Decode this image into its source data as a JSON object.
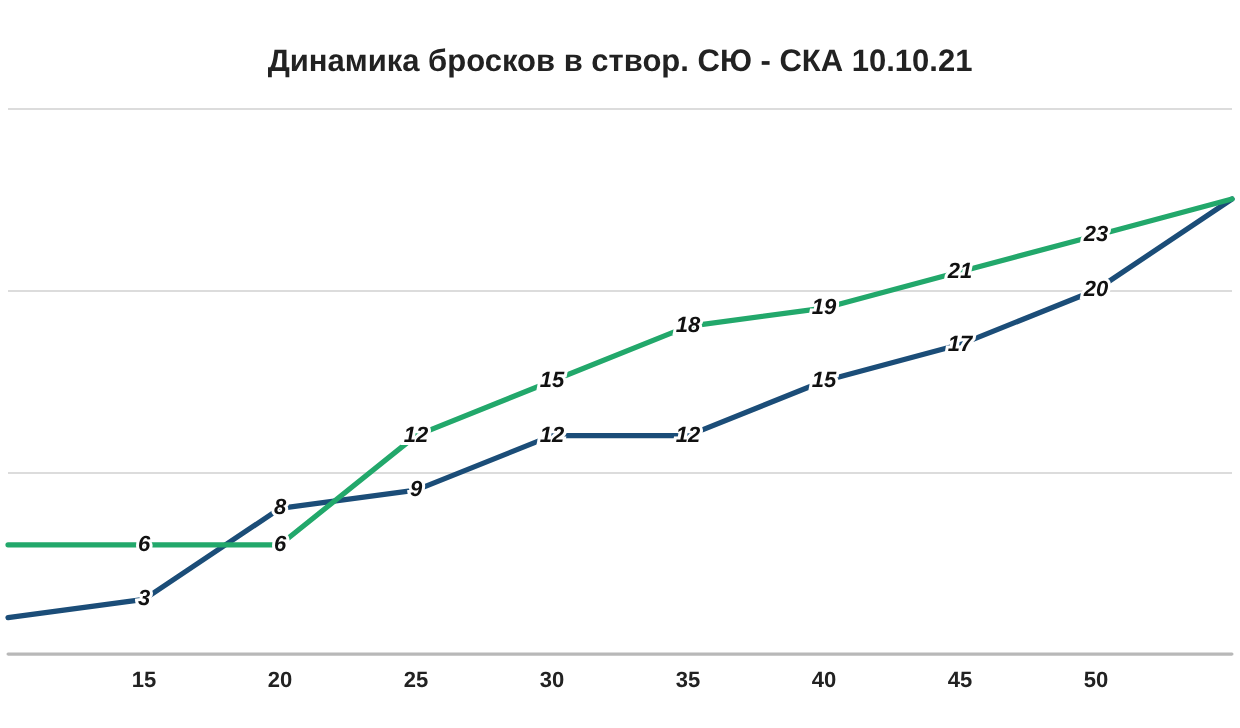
{
  "chart_data": {
    "type": "line",
    "title": "Динамика бросков в створ. СЮ - СКА 10.10.21",
    "categories": [
      null,
      "15",
      "20",
      "25",
      "30",
      "35",
      "40",
      "45",
      "50",
      null
    ],
    "series": [
      {
        "color": "#1b4d78",
        "values": [
          2,
          3,
          8,
          9,
          12,
          12,
          15,
          17,
          20,
          25
        ],
        "value_labels": [
          null,
          "3",
          "8",
          "9",
          "12",
          "12",
          "15",
          "17",
          "20",
          null
        ]
      },
      {
        "color": "#22a86b",
        "values": [
          6,
          6,
          6,
          12,
          15,
          18,
          19,
          21,
          23,
          25
        ],
        "value_labels": [
          null,
          "6",
          "6",
          "12",
          "15",
          "18",
          "19",
          "21",
          "23",
          null
        ]
      }
    ],
    "ylim": [
      0,
      30
    ],
    "yticks": [
      {
        "value": 0,
        "label": null
      },
      {
        "value": 10,
        "label": null
      },
      {
        "value": 20,
        "label": null
      },
      {
        "value": 30,
        "label": null
      }
    ],
    "grid": "y",
    "tick_labels": "x",
    "marker": "none",
    "line_style": "solid"
  }
}
